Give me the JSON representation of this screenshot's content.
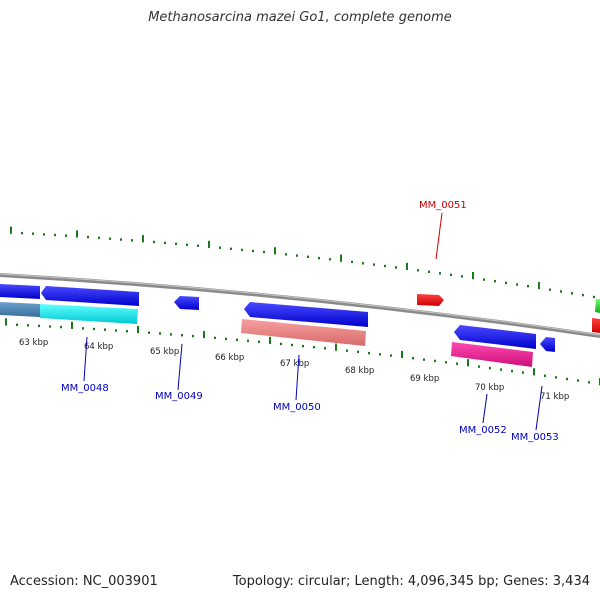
{
  "title": "Methanosarcina mazei Go1, complete genome",
  "accession": "Accession: NC_003901",
  "summary": "Topology: circular; Length: 4,096,345 bp; Genes: 3,434",
  "colors": {
    "backbone": "#8a8a8a",
    "tick": "#1a7a1a",
    "forward_label": "#cc0000",
    "reverse_label": "#0000bb",
    "blue": "#0000ee",
    "cyan": "#00e5ee",
    "salmon": "#f08080",
    "magenta": "#ee1493",
    "red": "#ee0000",
    "green": "#22cc22",
    "steel": "#4682b4"
  },
  "ruler": [
    {
      "label": "63 kbp",
      "pos": 63
    },
    {
      "label": "64 kbp",
      "pos": 64
    },
    {
      "label": "65 kbp",
      "pos": 65
    },
    {
      "label": "66 kbp",
      "pos": 66
    },
    {
      "label": "67 kbp",
      "pos": 67
    },
    {
      "label": "68 kbp",
      "pos": 68
    },
    {
      "label": "69 kbp",
      "pos": 69
    },
    {
      "label": "70 kbp",
      "pos": 70
    },
    {
      "label": "71 kbp",
      "pos": 71
    }
  ],
  "genes": [
    {
      "name": "MM_0048",
      "label_color": "#0000bb"
    },
    {
      "name": "MM_0049",
      "label_color": "#0000bb"
    },
    {
      "name": "MM_0050",
      "label_color": "#0000bb"
    },
    {
      "name": "MM_0051",
      "label_color": "#cc0000"
    },
    {
      "name": "MM_0052",
      "label_color": "#0000bb"
    },
    {
      "name": "MM_0053",
      "label_color": "#0000bb"
    }
  ]
}
